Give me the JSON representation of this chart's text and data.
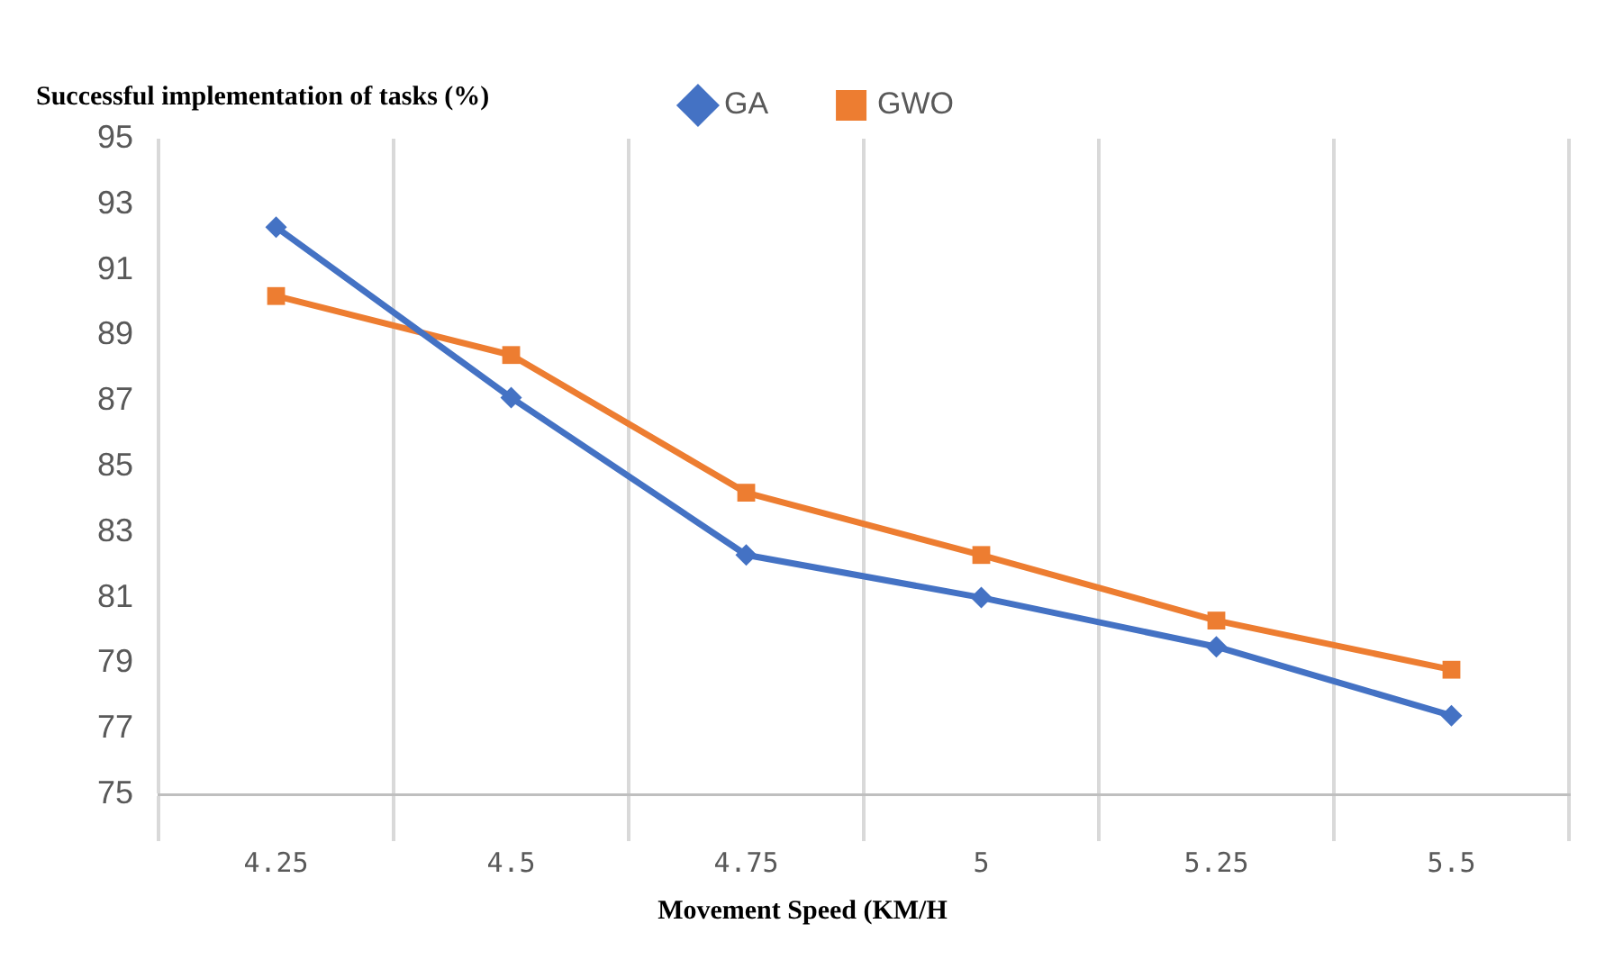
{
  "chart_data": {
    "type": "line",
    "xlabel": "Movement Speed (KM/H",
    "ylabel": "Successful implementation of tasks (%)",
    "categories": [
      "4.25",
      "4.5",
      "4.75",
      "5",
      "5.25",
      "5.5"
    ],
    "series": [
      {
        "name": "GA",
        "color": "#4472c4",
        "marker": "diamond",
        "values": [
          92.3,
          87.1,
          82.3,
          81.0,
          79.5,
          77.4
        ]
      },
      {
        "name": "GWO",
        "color": "#ed7d31",
        "marker": "square",
        "values": [
          90.2,
          88.4,
          84.2,
          82.3,
          80.3,
          78.8
        ]
      }
    ],
    "ylim": [
      75,
      95
    ],
    "yticks": [
      75,
      77,
      79,
      81,
      83,
      85,
      87,
      89,
      91,
      93,
      95
    ],
    "grid": "x",
    "legend": "top",
    "line_style": "solid"
  }
}
